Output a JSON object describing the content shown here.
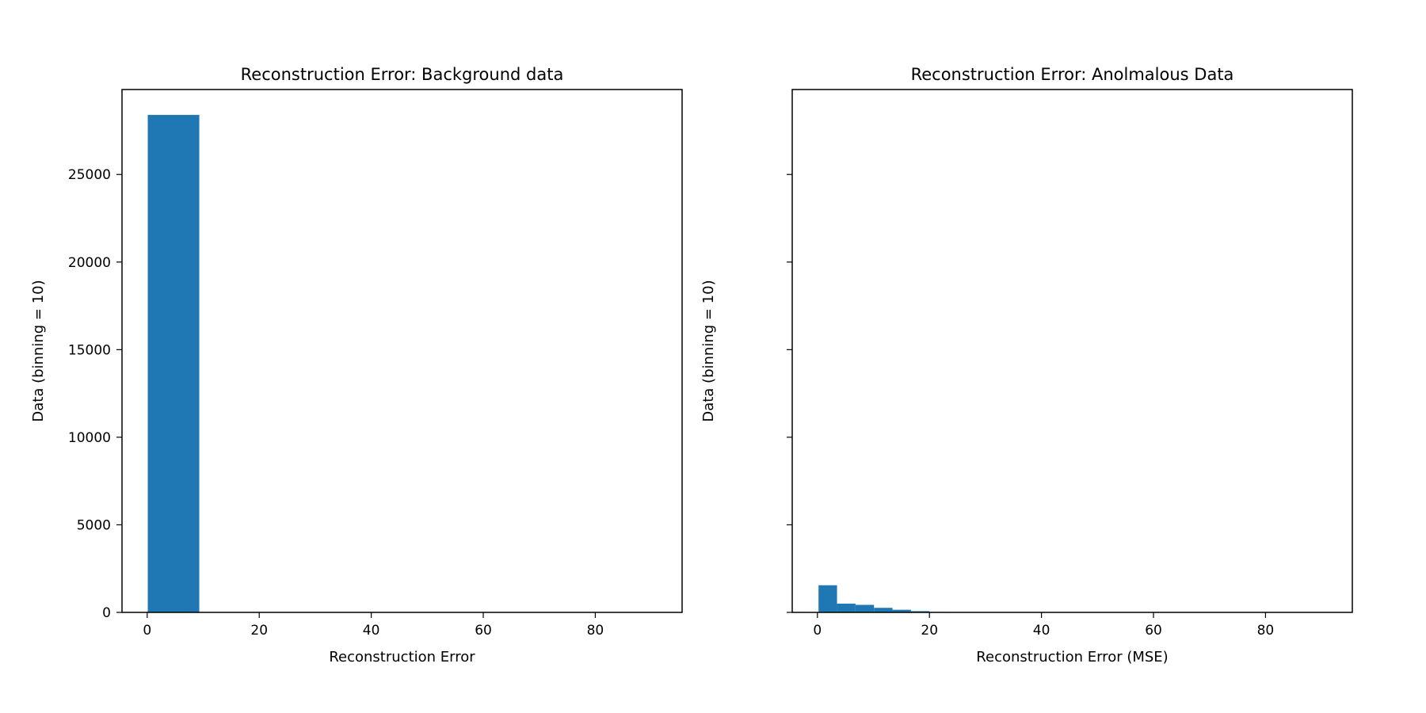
{
  "chart_data": [
    {
      "type": "bar",
      "title": "Reconstruction Error: Background data",
      "xlabel": "Reconstruction Error",
      "ylabel": "Data (binning = 10)",
      "xlim": [
        -4.5,
        95.5
      ],
      "ylim": [
        0,
        29850
      ],
      "xticks": [
        0,
        20,
        40,
        60,
        80
      ],
      "yticks": [
        0,
        5000,
        10000,
        15000,
        20000,
        25000
      ],
      "show_ytick_labels": true,
      "grid": false,
      "color": "#1f77b4",
      "bins": [
        {
          "x0": 0.1,
          "x1": 9.3,
          "count": 28400
        }
      ]
    },
    {
      "type": "bar",
      "title": "Reconstruction Error: Anolmalous Data",
      "xlabel": "Reconstruction Error (MSE)",
      "ylabel": "Data (binning = 10)",
      "xlim": [
        -4.5,
        95.5
      ],
      "ylim": [
        0,
        29850
      ],
      "xticks": [
        0,
        20,
        40,
        60,
        80
      ],
      "yticks": [
        0,
        5000,
        10000,
        15000,
        20000,
        25000
      ],
      "show_ytick_labels": false,
      "grid": false,
      "color": "#1f77b4",
      "bins": [
        {
          "x0": 0.2,
          "x1": 3.5,
          "count": 1550
        },
        {
          "x0": 3.5,
          "x1": 6.8,
          "count": 500
        },
        {
          "x0": 6.8,
          "x1": 10.1,
          "count": 430
        },
        {
          "x0": 10.1,
          "x1": 13.4,
          "count": 260
        },
        {
          "x0": 13.4,
          "x1": 16.7,
          "count": 150
        },
        {
          "x0": 16.7,
          "x1": 20.0,
          "count": 70
        },
        {
          "x0": 20.0,
          "x1": 23.3,
          "count": 25
        },
        {
          "x0": 23.3,
          "x1": 26.6,
          "count": 10
        },
        {
          "x0": 26.6,
          "x1": 29.9,
          "count": 5
        }
      ]
    }
  ]
}
